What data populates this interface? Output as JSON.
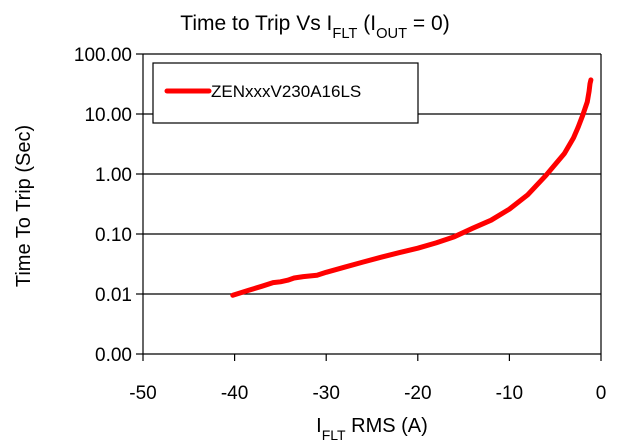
{
  "chart_data": {
    "type": "line",
    "title": {
      "parts": [
        {
          "text": "Time to Trip Vs I",
          "sub": false
        },
        {
          "text": "FLT",
          "sub": true
        },
        {
          "text": " (I",
          "sub": false
        },
        {
          "text": "OUT",
          "sub": true
        },
        {
          "text": " = 0)",
          "sub": false
        }
      ]
    },
    "xlabel": {
      "parts": [
        {
          "text": "I",
          "sub": false
        },
        {
          "text": "FLT",
          "sub": true
        },
        {
          "text": " RMS (A)",
          "sub": false
        }
      ]
    },
    "ylabel": "Time To Trip (Sec)",
    "xlim": [
      -50,
      0
    ],
    "ylim_decades": [
      -3,
      2
    ],
    "yscale": "log",
    "x_ticks": [
      -50,
      -40,
      -30,
      -20,
      -10,
      0
    ],
    "x_tick_labels": [
      "-50",
      "-40",
      "-30",
      "-20",
      "-10",
      "0"
    ],
    "y_ticks": [
      0.001,
      0.01,
      0.1,
      1,
      10,
      100
    ],
    "y_tick_labels": [
      "0.00",
      "0.01",
      "0.10",
      "1.00",
      "10.00",
      "100.00"
    ],
    "grid": "horizontal major",
    "legend_position": "top-left",
    "series": [
      {
        "name": "ZENxxxV230A16LS",
        "color": "#ff0000",
        "x": [
          -40.2,
          -38.5,
          -37,
          -35.8,
          -35,
          -34.2,
          -33.5,
          -32.5,
          -31,
          -30,
          -28,
          -26,
          -24,
          -22,
          -20,
          -18,
          -16,
          -14,
          -12,
          -10,
          -8,
          -6,
          -4,
          -3,
          -2.5,
          -2,
          -1.5,
          -1.3,
          -1.2,
          -1.1
        ],
        "y": [
          0.0095,
          0.0115,
          0.0135,
          0.0155,
          0.016,
          0.017,
          0.0185,
          0.0195,
          0.0205,
          0.023,
          0.028,
          0.034,
          0.041,
          0.049,
          0.058,
          0.071,
          0.09,
          0.125,
          0.17,
          0.26,
          0.45,
          0.95,
          2.2,
          4.0,
          6.0,
          9.5,
          16,
          24,
          32,
          37
        ]
      }
    ]
  }
}
